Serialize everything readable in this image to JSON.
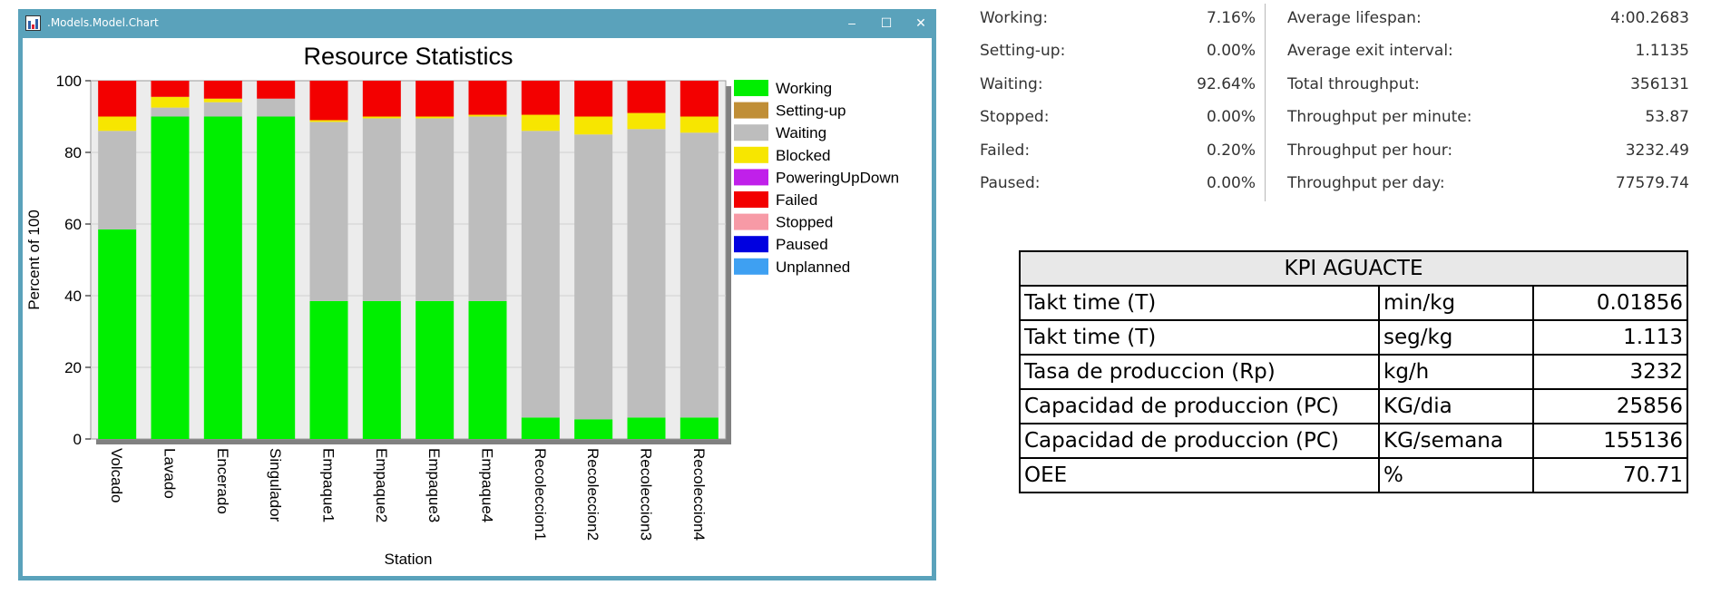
{
  "window": {
    "title": ".Models.Model.Chart",
    "controls": {
      "minimize": "–",
      "maximize": "☐",
      "close": "✕"
    }
  },
  "colors": {
    "titlebar": "#5aa2bb",
    "Working": "#00ef00",
    "Setting-up": "#c08e36",
    "Waiting": "#bdbdbd",
    "Blocked": "#f7e600",
    "PoweringUpDown": "#c020ea",
    "Failed": "#f30000",
    "Stopped": "#f79aa6",
    "Paused": "#0000e0",
    "Unplanned": "#3ea0f2"
  },
  "chart_data": {
    "type": "bar",
    "stacked": true,
    "title": "Resource Statistics",
    "xlabel": "Station",
    "ylabel": "Percent of 100",
    "ylim": [
      0,
      100
    ],
    "yticks": [
      0,
      20,
      40,
      60,
      80,
      100
    ],
    "grid": true,
    "legend_position": "right",
    "categories": [
      "Volcado",
      "Lavado",
      "Encerado",
      "Singulador",
      "Empaque1",
      "Empaque2",
      "Empaque3",
      "Empaque4",
      "Recoleccion1",
      "Recoleccion2",
      "Recoleccion3",
      "Recoleccion4"
    ],
    "series": [
      {
        "name": "Working",
        "values": [
          58.5,
          90,
          90,
          90,
          38.5,
          38.5,
          38.5,
          38.5,
          6,
          5.5,
          6,
          6
        ]
      },
      {
        "name": "Setting-up",
        "values": [
          0,
          0,
          0,
          0,
          0,
          0,
          0,
          0,
          0,
          0,
          0,
          0
        ]
      },
      {
        "name": "Waiting",
        "values": [
          27.5,
          2.5,
          4,
          5,
          50,
          51,
          51,
          51.5,
          80,
          79.5,
          80.5,
          79.5
        ]
      },
      {
        "name": "Blocked",
        "values": [
          4,
          3,
          1,
          0,
          0.5,
          0.5,
          0.5,
          0.5,
          4.5,
          5,
          4.5,
          4.5
        ]
      },
      {
        "name": "PoweringUpDown",
        "values": [
          0,
          0,
          0,
          0,
          0,
          0,
          0,
          0,
          0,
          0,
          0,
          0
        ]
      },
      {
        "name": "Failed",
        "values": [
          10,
          4.5,
          5,
          5,
          11,
          10,
          10,
          9.5,
          9.5,
          10,
          9,
          10
        ]
      },
      {
        "name": "Stopped",
        "values": [
          0,
          0,
          0,
          0,
          0,
          0,
          0,
          0,
          0,
          0,
          0,
          0
        ]
      },
      {
        "name": "Paused",
        "values": [
          0,
          0,
          0,
          0,
          0,
          0,
          0,
          0,
          0,
          0,
          0,
          0
        ]
      },
      {
        "name": "Unplanned",
        "values": [
          0,
          0,
          0,
          0,
          0,
          0,
          0,
          0,
          0,
          0,
          0,
          0
        ]
      }
    ]
  },
  "stats": {
    "left": [
      {
        "label": "Working:",
        "value": "7.16%"
      },
      {
        "label": "Setting-up:",
        "value": "0.00%"
      },
      {
        "label": "Waiting:",
        "value": "92.64%"
      },
      {
        "label": "Stopped:",
        "value": "0.00%"
      },
      {
        "label": "Failed:",
        "value": "0.20%"
      },
      {
        "label": "Paused:",
        "value": "0.00%"
      }
    ],
    "right": [
      {
        "label": "Average lifespan:",
        "value": "4:00.2683"
      },
      {
        "label": "Average exit interval:",
        "value": "1.1135"
      },
      {
        "label": "Total throughput:",
        "value": "356131"
      },
      {
        "label": "Throughput per minute:",
        "value": "53.87"
      },
      {
        "label": "Throughput per hour:",
        "value": "3232.49"
      },
      {
        "label": "Throughput per day:",
        "value": "77579.74"
      }
    ]
  },
  "kpi": {
    "title": "KPI AGUACTE",
    "rows": [
      {
        "name": "Takt time (T)",
        "unit": "min/kg",
        "value": "0.01856"
      },
      {
        "name": "Takt time (T)",
        "unit": "seg/kg",
        "value": "1.113"
      },
      {
        "name": "Tasa de produccion (Rp)",
        "unit": "kg/h",
        "value": "3232"
      },
      {
        "name": "Capacidad de produccion (PC)",
        "unit": "KG/dia",
        "value": "25856"
      },
      {
        "name": "Capacidad de produccion (PC)",
        "unit": "KG/semana",
        "value": "155136"
      },
      {
        "name": "OEE",
        "unit": "%",
        "value": "70.71"
      }
    ]
  }
}
